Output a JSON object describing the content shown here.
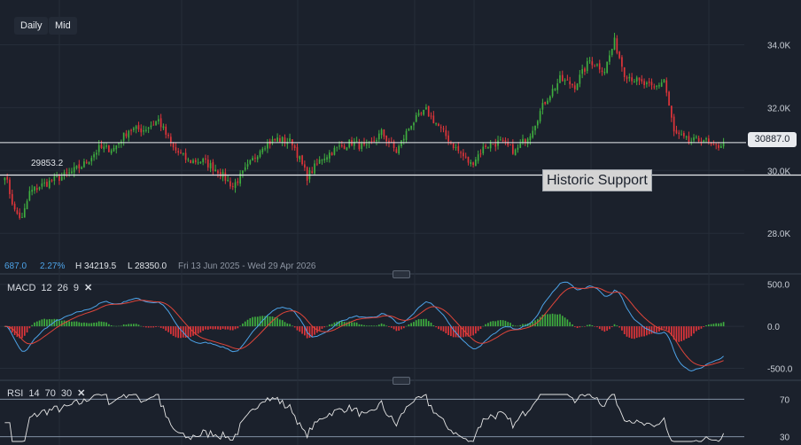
{
  "toolbar": {
    "daily_label": "Daily",
    "mid_label": "Mid"
  },
  "stats": {
    "change": "687.0",
    "change_pct": "2.27%",
    "high": "H 34219.5",
    "low": "L 28350.0",
    "range": "Fri 13 Jun 2025 - Wed 29 Apr 2026"
  },
  "last_price": "30887.0",
  "support_value": "29853.2",
  "annotation": "Historic Support",
  "colors": {
    "up": "#3fae3f",
    "down": "#e0353a",
    "macd": "#4da3e8",
    "signal": "#e0453a",
    "rsi": "#e6e6e6",
    "line": "#e9ecef",
    "background": "#1b212c"
  },
  "macd": {
    "label": "MACD",
    "p1": "12",
    "p2": "26",
    "p3": "9",
    "close_icon": "✕"
  },
  "rsi": {
    "label": "RSI",
    "p1": "14",
    "p2": "70",
    "p3": "30",
    "close_icon": "✕"
  },
  "chart_data": [
    {
      "type": "candlestick",
      "x_range": [
        "2025-06-13",
        "2026-04-29"
      ],
      "y_ticks": [
        "34.0K",
        "32.0K",
        "30.0K",
        "28.0K"
      ],
      "ylim": [
        27300,
        35200
      ],
      "horizontal_lines": [
        30887,
        29853.2
      ],
      "close_anchors": [
        [
          0,
          29900
        ],
        [
          4,
          28700
        ],
        [
          7,
          28450
        ],
        [
          10,
          29300
        ],
        [
          14,
          29500
        ],
        [
          20,
          29700
        ],
        [
          26,
          29900
        ],
        [
          32,
          30200
        ],
        [
          38,
          30700
        ],
        [
          44,
          30700
        ],
        [
          50,
          31300
        ],
        [
          56,
          31300
        ],
        [
          62,
          31600
        ],
        [
          68,
          30700
        ],
        [
          74,
          30300
        ],
        [
          80,
          30300
        ],
        [
          86,
          30000
        ],
        [
          92,
          29500
        ],
        [
          98,
          30100
        ],
        [
          104,
          30800
        ],
        [
          110,
          31000
        ],
        [
          116,
          30900
        ],
        [
          122,
          29800
        ],
        [
          128,
          30400
        ],
        [
          134,
          30700
        ],
        [
          140,
          30900
        ],
        [
          146,
          30700
        ],
        [
          152,
          31200
        ],
        [
          158,
          30600
        ],
        [
          164,
          31500
        ],
        [
          170,
          31900
        ],
        [
          176,
          31300
        ],
        [
          182,
          30700
        ],
        [
          188,
          30200
        ],
        [
          194,
          30800
        ],
        [
          200,
          30900
        ],
        [
          206,
          30600
        ],
        [
          212,
          31200
        ],
        [
          218,
          32200
        ],
        [
          224,
          32900
        ],
        [
          230,
          32700
        ],
        [
          236,
          33500
        ],
        [
          242,
          33200
        ],
        [
          246,
          34100
        ],
        [
          250,
          33100
        ],
        [
          256,
          32800
        ],
        [
          262,
          32600
        ],
        [
          266,
          32900
        ],
        [
          270,
          31200
        ],
        [
          276,
          30900
        ],
        [
          282,
          31000
        ],
        [
          286,
          30700
        ],
        [
          290,
          30887
        ]
      ]
    },
    {
      "type": "line",
      "name": "MACD",
      "y_ticks": [
        "500.0",
        "0.0",
        "-500.0"
      ],
      "ylim": [
        -600,
        560
      ]
    },
    {
      "type": "line",
      "name": "RSI",
      "y_ticks": [
        "70",
        "30"
      ],
      "ylim": [
        25,
        75
      ]
    }
  ]
}
